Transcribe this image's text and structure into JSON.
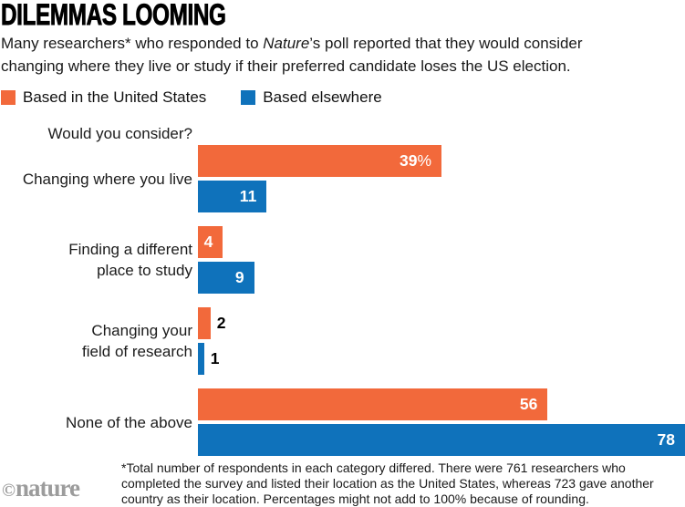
{
  "brand": {
    "copyright": "©",
    "name": "nature"
  },
  "header": {
    "title": "DILEMMAS LOOMING",
    "subtitle": {
      "pre": "Many researchers* who responded to ",
      "italic": "Nature",
      "post": "’s poll reported that they would consider\nchanging where they live or study if their preferred candidate loses the US election."
    }
  },
  "legend": {
    "items": [
      {
        "label": "Based in the United States",
        "color": "#F2693B"
      },
      {
        "label": "Based elsewhere",
        "color": "#0F72BB"
      }
    ]
  },
  "chart_data": {
    "type": "bar",
    "orientation": "horizontal",
    "prompt": "Would you consider?",
    "categories": [
      "Changing where you live",
      "Finding a different\nplace to study",
      "Changing your\nfield of research",
      "None of the above"
    ],
    "series": [
      {
        "name": "Based in the United States",
        "color": "#F2693B",
        "values": [
          39,
          4,
          2,
          56
        ],
        "labels": [
          "39%",
          "4",
          "2",
          "56"
        ]
      },
      {
        "name": "Based elsewhere",
        "color": "#0F72BB",
        "values": [
          11,
          9,
          1,
          78
        ],
        "labels": [
          "11",
          "9",
          "1",
          "78"
        ]
      }
    ],
    "xlim": [
      0,
      78
    ],
    "grid": false,
    "legend_position": "top"
  },
  "footnote": "*Total number of respondents in each category differed. There were 761 researchers who\ncompleted the survey and listed their location as the United States, whereas 723 gave another\ncountry as their location. Percentages might not add to 100% because of rounding."
}
